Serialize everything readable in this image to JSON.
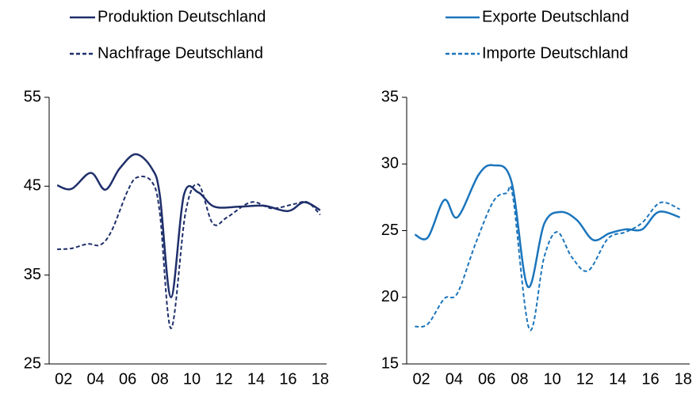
{
  "chart_data": [
    {
      "type": "line",
      "xlim": [
        2001.1,
        2018.4
      ],
      "ylim": [
        25,
        55
      ],
      "yticks": [
        25,
        35,
        45,
        55
      ],
      "xticks": [
        {
          "value": 2002,
          "label": "02"
        },
        {
          "value": 2004,
          "label": "04"
        },
        {
          "value": 2006,
          "label": "06"
        },
        {
          "value": 2008,
          "label": "08"
        },
        {
          "value": 2010,
          "label": "10"
        },
        {
          "value": 2012,
          "label": "12"
        },
        {
          "value": 2014,
          "label": "14"
        },
        {
          "value": 2016,
          "label": "16"
        },
        {
          "value": 2018,
          "label": "18"
        }
      ],
      "series": [
        {
          "name": "Produktion Deutschland",
          "color": "#1f2f6b",
          "dashed": false,
          "x": [
            2001.6,
            2002.5,
            2003.7,
            2004.6,
            2005.5,
            2006.5,
            2007.5,
            2008.0,
            2008.7,
            2009.5,
            2010.4,
            2011.4,
            2013,
            2014.5,
            2016,
            2017,
            2018
          ],
          "values": [
            45.1,
            44.7,
            46.5,
            44.6,
            47,
            48.6,
            47,
            44,
            32.5,
            44,
            44.3,
            42.7,
            42.7,
            42.8,
            42.2,
            43.2,
            42.3
          ]
        },
        {
          "name": "Nachfrage Deutschland",
          "color": "#1f2f6b",
          "dashed": true,
          "x": [
            2001.6,
            2002.5,
            2003.5,
            2004.3,
            2005,
            2006,
            2006.6,
            2007.5,
            2008,
            2008.7,
            2009.6,
            2010.4,
            2011.3,
            2012.2,
            2013.7,
            2015,
            2016.4,
            2017.2,
            2018
          ],
          "values": [
            37.9,
            38,
            38.5,
            38.4,
            40,
            44.5,
            46,
            45.5,
            42,
            29,
            42,
            45.2,
            40.8,
            41.5,
            43.2,
            42.5,
            43,
            43.2,
            41.8
          ]
        }
      ]
    },
    {
      "type": "line",
      "xlim": [
        2001.1,
        2018.4
      ],
      "ylim": [
        15,
        35
      ],
      "yticks": [
        15,
        20,
        25,
        30,
        35
      ],
      "xticks": [
        {
          "value": 2002,
          "label": "02"
        },
        {
          "value": 2004,
          "label": "04"
        },
        {
          "value": 2006,
          "label": "06"
        },
        {
          "value": 2008,
          "label": "08"
        },
        {
          "value": 2010,
          "label": "10"
        },
        {
          "value": 2012,
          "label": "12"
        },
        {
          "value": 2014,
          "label": "14"
        },
        {
          "value": 2016,
          "label": "16"
        },
        {
          "value": 2018,
          "label": "18"
        }
      ],
      "series": [
        {
          "name": "Exporte Deutschland",
          "color": "#1b75bc",
          "dashed": false,
          "x": [
            2001.6,
            2002.4,
            2003.4,
            2004.2,
            2005.5,
            2006.4,
            2007.5,
            2008.5,
            2009.5,
            2010.5,
            2011.5,
            2012.5,
            2013.5,
            2014.5,
            2015.5,
            2016.5,
            2017.8
          ],
          "values": [
            24.7,
            24.5,
            27.3,
            26,
            29.2,
            29.9,
            28.7,
            20.8,
            25.5,
            26.4,
            25.8,
            24.3,
            24.8,
            25.1,
            25.1,
            26.4,
            26
          ]
        },
        {
          "name": "Importe Deutschland",
          "color": "#1b75bc",
          "dashed": true,
          "x": [
            2001.6,
            2002.4,
            2003.4,
            2004.2,
            2005.3,
            2006.4,
            2007.2,
            2007.6,
            2008.6,
            2009.5,
            2010.3,
            2011.2,
            2012.2,
            2013.4,
            2014.5,
            2015.5,
            2016.6,
            2017.8
          ],
          "values": [
            17.8,
            18,
            19.9,
            20.3,
            24,
            27.2,
            27.8,
            27.5,
            17.6,
            23,
            24.9,
            23,
            22,
            24.4,
            24.9,
            25.6,
            27.1,
            26.6
          ]
        }
      ]
    }
  ]
}
